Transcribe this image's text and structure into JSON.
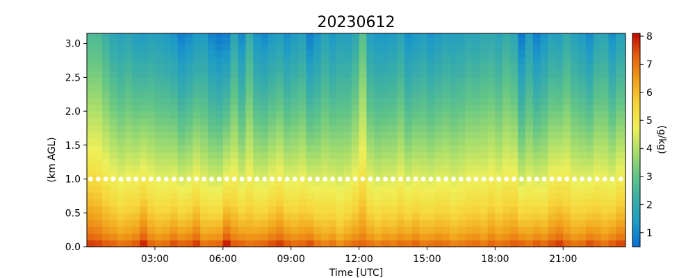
{
  "chart_data": {
    "type": "heatmap",
    "title": "20230612",
    "xlabel": "Time [UTC]",
    "ylabel": "(km AGL)",
    "colorbar_label": "(g/kg)",
    "xlim_hours": [
      0,
      23.75
    ],
    "ylim_km": [
      0,
      3.15
    ],
    "x_ticks": [
      {
        "hours": 3,
        "label": "03:00"
      },
      {
        "hours": 6,
        "label": "06:00"
      },
      {
        "hours": 9,
        "label": "09:00"
      },
      {
        "hours": 12,
        "label": "12:00"
      },
      {
        "hours": 15,
        "label": "15:00"
      },
      {
        "hours": 18,
        "label": "18:00"
      },
      {
        "hours": 21,
        "label": "21:00"
      }
    ],
    "y_ticks": [
      {
        "km": 0.0,
        "label": "0.0"
      },
      {
        "km": 0.5,
        "label": "0.5"
      },
      {
        "km": 1.0,
        "label": "1.0"
      },
      {
        "km": 1.5,
        "label": "1.5"
      },
      {
        "km": 2.0,
        "label": "2.0"
      },
      {
        "km": 2.5,
        "label": "2.5"
      },
      {
        "km": 3.0,
        "label": "3.0"
      }
    ],
    "colorbar_range": [
      0.5,
      8.1
    ],
    "colorbar_ticks": [
      {
        "value": 1,
        "label": "1"
      },
      {
        "value": 2,
        "label": "2"
      },
      {
        "value": 3,
        "label": "3"
      },
      {
        "value": 4,
        "label": "4"
      },
      {
        "value": 5,
        "label": "5"
      },
      {
        "value": 6,
        "label": "6"
      },
      {
        "value": 7,
        "label": "7"
      },
      {
        "value": 8,
        "label": "8"
      }
    ],
    "colormap_stops": [
      "#0a6fd2",
      "#1e9bc6",
      "#3aaea8",
      "#63c586",
      "#a8de6c",
      "#eef05a",
      "#f6d63a",
      "#f1a11c",
      "#e4640d",
      "#c10800"
    ],
    "heights_km": [
      0.0,
      0.1,
      0.2,
      0.3,
      0.4,
      0.5,
      0.6,
      0.7,
      0.8,
      0.9,
      1.0,
      1.1,
      1.2,
      1.3,
      1.4,
      1.5,
      1.6,
      1.7,
      1.8,
      1.9,
      2.0,
      2.1,
      2.2,
      2.3,
      2.4,
      2.5,
      2.6,
      2.7,
      2.8,
      2.9,
      3.0,
      3.1
    ],
    "times_hours": [
      0.0,
      0.33,
      0.67,
      1.0,
      1.33,
      1.67,
      2.0,
      2.33,
      2.67,
      3.0,
      3.33,
      3.67,
      4.0,
      4.33,
      4.67,
      5.0,
      5.33,
      5.67,
      6.0,
      6.33,
      6.67,
      7.0,
      7.33,
      7.67,
      8.0,
      8.33,
      8.67,
      9.0,
      9.33,
      9.67,
      10.0,
      10.33,
      10.67,
      11.0,
      11.33,
      11.67,
      12.0,
      12.33,
      12.67,
      13.0,
      13.33,
      13.67,
      14.0,
      14.33,
      14.67,
      15.0,
      15.33,
      15.67,
      16.0,
      16.33,
      16.67,
      17.0,
      17.33,
      17.67,
      18.0,
      18.33,
      18.67,
      19.0,
      19.33,
      19.67,
      20.0,
      20.33,
      20.67,
      21.0,
      21.33,
      21.67,
      22.0,
      22.33,
      22.67,
      23.0,
      23.33
    ],
    "surface_mixing_ratio_gkg": [
      7.6,
      7.5,
      7.3,
      7.2,
      7.0,
      7.1,
      7.3,
      7.8,
      7.2,
      7.0,
      7.1,
      7.4,
      7.2,
      7.3,
      7.6,
      7.0,
      7.1,
      7.2,
      7.9,
      7.3,
      7.2,
      7.0,
      7.1,
      7.2,
      7.4,
      7.6,
      7.3,
      7.1,
      7.2,
      7.4,
      7.0,
      6.8,
      7.0,
      6.6,
      6.9,
      7.1,
      7.2,
      7.0,
      6.8,
      7.0,
      6.9,
      7.1,
      7.0,
      7.2,
      6.9,
      7.0,
      7.1,
      7.0,
      6.8,
      6.9,
      7.0,
      7.1,
      6.9,
      7.2,
      7.0,
      7.1,
      7.3,
      7.2,
      7.0,
      7.3,
      7.1,
      7.4,
      7.6,
      7.2,
      7.0,
      7.1,
      7.4,
      7.2,
      7.0,
      7.3,
      7.5
    ],
    "upper_mixing_ratio_gkg": [
      2.6,
      2.6,
      2.2,
      1.8,
      1.6,
      1.8,
      1.5,
      1.4,
      1.6,
      1.5,
      1.4,
      1.2,
      0.8,
      1.0,
      1.3,
      1.4,
      0.9,
      0.7,
      0.8,
      1.8,
      1.0,
      2.1,
      1.2,
      1.0,
      1.3,
      1.5,
      1.1,
      1.4,
      1.6,
      0.8,
      1.2,
      1.7,
      1.3,
      1.6,
      1.5,
      1.9,
      2.8,
      1.5,
      1.3,
      1.3,
      1.4,
      1.7,
      1.1,
      1.3,
      1.5,
      1.2,
      1.4,
      1.6,
      1.5,
      1.6,
      1.8,
      1.7,
      1.9,
      1.9,
      1.7,
      2.1,
      1.8,
      0.7,
      1.5,
      0.8,
      1.2,
      1.6,
      1.5,
      2.0,
      1.6,
      1.4,
      1.0,
      1.7,
      1.8,
      1.1,
      1.6
    ],
    "boundary_layer_top_km": 1.0,
    "boundary_layer_marker_color": "#ffffff"
  }
}
